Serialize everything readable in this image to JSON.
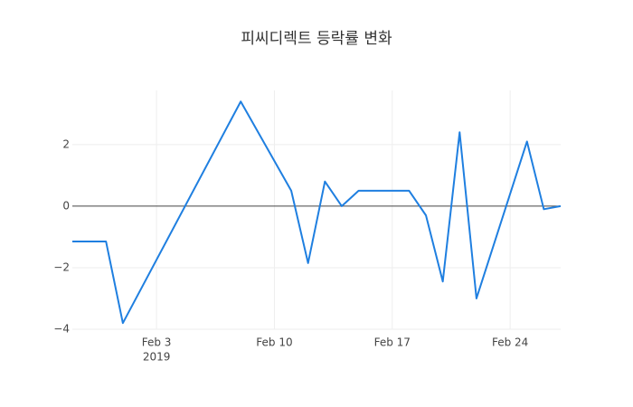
{
  "chart_data": {
    "type": "line",
    "title": "피씨디렉트 등락률 변화",
    "x": [
      "2019-01-29",
      "2019-01-31",
      "2019-02-01",
      "2019-02-08",
      "2019-02-11",
      "2019-02-12",
      "2019-02-13",
      "2019-02-14",
      "2019-02-15",
      "2019-02-18",
      "2019-02-19",
      "2019-02-20",
      "2019-02-21",
      "2019-02-22",
      "2019-02-25",
      "2019-02-26",
      "2019-02-27"
    ],
    "series": [
      {
        "color": "#1f7fe0",
        "values": [
          -1.15,
          -1.15,
          -3.8,
          3.4,
          0.5,
          -1.85,
          0.8,
          0,
          0.5,
          0.5,
          -0.3,
          -2.45,
          2.4,
          -3.0,
          2.1,
          -0.1,
          0
        ]
      }
    ],
    "xlim": [
      "2019-01-29",
      "2019-02-27"
    ],
    "xticks": [
      {
        "value": "2019-02-03",
        "label": "Feb 3"
      },
      {
        "value": "2019-02-10",
        "label": "Feb 10"
      },
      {
        "value": "2019-02-17",
        "label": "Feb 17"
      },
      {
        "value": "2019-02-24",
        "label": "Feb 24"
      }
    ],
    "x_year_label": "2019",
    "ylim": [
      -4,
      3.76
    ],
    "yticks": [
      {
        "value": -4,
        "label": "−4"
      },
      {
        "value": -2,
        "label": "−2"
      },
      0,
      2
    ],
    "grid": true
  }
}
